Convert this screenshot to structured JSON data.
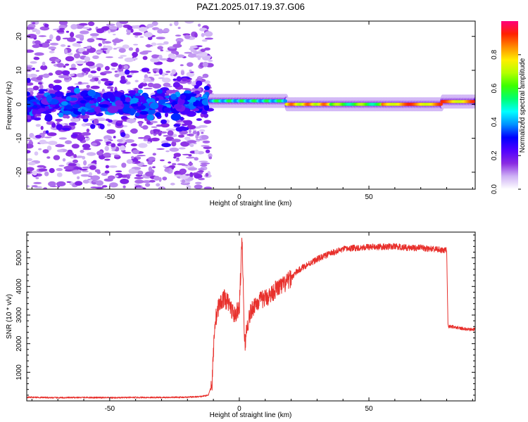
{
  "chart_data": [
    {
      "type": "heatmap",
      "title": "PAZ1.2025.017.19.37.G06",
      "xlabel": "Height of straight line (km)",
      "ylabel": "Frequency (Hz)",
      "xlim": [
        -82,
        91
      ],
      "ylim": [
        -25,
        24.5
      ],
      "x_ticks": [
        -50,
        0,
        50
      ],
      "y_ticks": [
        -20,
        -10,
        0,
        10,
        20
      ],
      "colorbar": {
        "label": "Normalized spectral amplitude",
        "range": [
          0,
          1
        ],
        "ticks": [
          "0.0",
          "0.2",
          "0.4",
          "0.6",
          "0.8"
        ],
        "colormap": [
          "#ffffff",
          "#cfb2f5",
          "#8a2be2",
          "#5000ff",
          "#0000ff",
          "#0090ff",
          "#00ffff",
          "#00ff70",
          "#3cff00",
          "#b5ff00",
          "#ffee00",
          "#ff8c00",
          "#ff2200",
          "#ff007a"
        ]
      },
      "description_points": [
        {
          "x_range": [
            -82,
            -11
          ],
          "frequency_spread_hz": [
            -25,
            24.5
          ],
          "core_band_hz": [
            -4,
            4
          ],
          "amplitude": "low-to-medium scattered"
        },
        {
          "x_range": [
            -11,
            18
          ],
          "frequency_hz": 1.0,
          "amplitude": "medium-high (green/yellow core)"
        },
        {
          "x_range": [
            18,
            78
          ],
          "frequency_hz": 0.0,
          "amplitude": "high (red core)"
        },
        {
          "x_range": [
            78,
            91
          ],
          "frequency_hz": 0.8,
          "amplitude": "high (red core)"
        }
      ]
    },
    {
      "type": "line",
      "xlabel": "Height of straight line (km)",
      "ylabel": "SNR (10 * v/v)",
      "xlim": [
        -82,
        91
      ],
      "ylim": [
        0,
        5900
      ],
      "x_ticks": [
        -50,
        0,
        50
      ],
      "y_ticks": [
        1000,
        2000,
        3000,
        4000,
        5000
      ],
      "color": "#e8302c",
      "series": [
        {
          "x": [
            -82,
            -70,
            -60,
            -50,
            -40,
            -30,
            -20,
            -15,
            -12,
            -10.5,
            -9.5,
            -8,
            -6,
            -4,
            -2,
            0,
            1,
            1.5,
            2,
            3,
            4,
            6,
            8,
            10,
            12,
            14,
            16,
            18,
            20,
            22,
            25,
            30,
            35,
            40,
            45,
            50,
            55,
            60,
            65,
            70,
            75,
            80,
            80.5,
            82,
            85,
            88,
            91
          ],
          "y": [
            130,
            110,
            120,
            110,
            120,
            120,
            130,
            150,
            200,
            600,
            2700,
            3300,
            3600,
            3400,
            3000,
            3200,
            5600,
            4200,
            1900,
            2600,
            3000,
            3400,
            3500,
            3600,
            3700,
            3900,
            4000,
            4100,
            4300,
            4500,
            4700,
            4950,
            5150,
            5300,
            5350,
            5380,
            5380,
            5400,
            5350,
            5350,
            5300,
            5250,
            2600,
            2600,
            2550,
            2500,
            2500
          ]
        }
      ]
    }
  ]
}
